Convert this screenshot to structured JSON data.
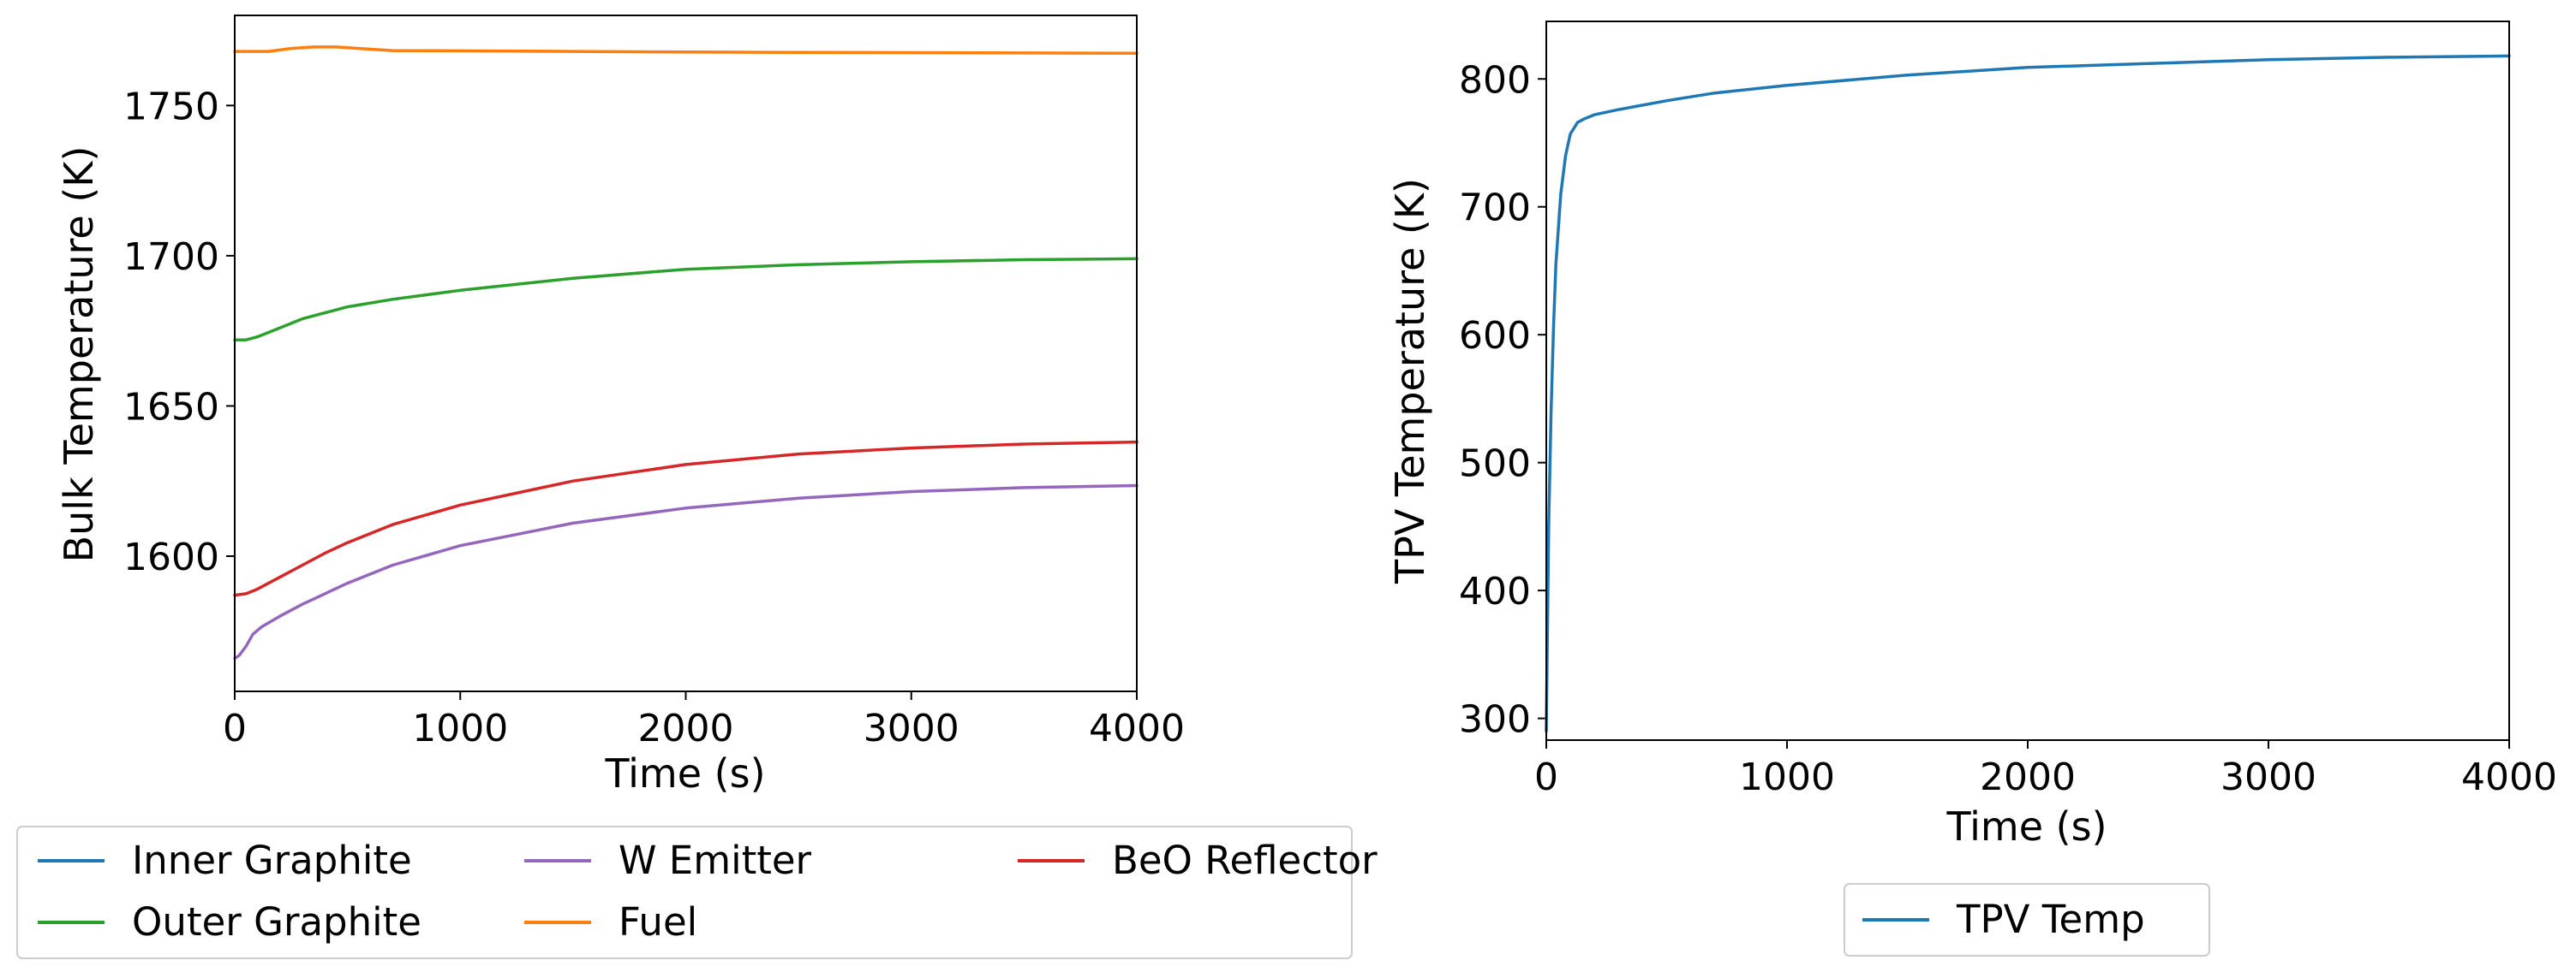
{
  "chart_data": [
    {
      "type": "line",
      "xlabel": "Time (s)",
      "ylabel": "Bulk Temperature (K)",
      "xlim": [
        0,
        4000
      ],
      "ylim": [
        1555,
        1780
      ],
      "xticks": [
        0,
        1000,
        2000,
        3000,
        4000
      ],
      "yticks": [
        1600,
        1650,
        1700,
        1750
      ],
      "legend": "below",
      "series": [
        {
          "name": "Inner Graphite",
          "color": "#1f77b4",
          "x": [],
          "y": []
        },
        {
          "name": "Fuel",
          "color": "#ff7f0e",
          "x": [
            0,
            150,
            250,
            350,
            450,
            550,
            700,
            1000,
            1500,
            2000,
            2500,
            3000,
            3500,
            4000
          ],
          "y": [
            1768,
            1768,
            1769,
            1769.5,
            1769.5,
            1769,
            1768.3,
            1768.2,
            1768,
            1767.8,
            1767.7,
            1767.6,
            1767.5,
            1767.4
          ]
        },
        {
          "name": "Outer Graphite",
          "color": "#2ca02c",
          "x": [
            0,
            50,
            100,
            200,
            300,
            400,
            500,
            700,
            1000,
            1500,
            2000,
            2500,
            3000,
            3500,
            4000
          ],
          "y": [
            1672,
            1672,
            1673,
            1676,
            1679,
            1681,
            1683,
            1685.5,
            1688.5,
            1692.5,
            1695.5,
            1697,
            1698,
            1698.7,
            1699
          ]
        },
        {
          "name": "BeO Reflector",
          "color": "#d62728",
          "x": [
            0,
            50,
            100,
            200,
            300,
            400,
            500,
            700,
            1000,
            1500,
            2000,
            2500,
            3000,
            3500,
            4000
          ],
          "y": [
            1587,
            1587.5,
            1589,
            1593,
            1597,
            1601,
            1604.5,
            1610.5,
            1617,
            1625,
            1630.5,
            1634,
            1636,
            1637.3,
            1638
          ]
        },
        {
          "name": "W Emitter",
          "color": "#9467bd",
          "x": [
            0,
            20,
            50,
            80,
            120,
            200,
            300,
            500,
            700,
            1000,
            1500,
            2000,
            2500,
            3000,
            3500,
            4000
          ],
          "y": [
            1566,
            1567,
            1570,
            1574,
            1576.5,
            1580,
            1584,
            1591,
            1597,
            1603.5,
            1611,
            1616,
            1619.3,
            1621.5,
            1622.8,
            1623.5
          ]
        }
      ],
      "legend_entries": [
        "Inner Graphite",
        "Outer Graphite",
        "W Emitter",
        "Fuel",
        "BeO Reflector"
      ]
    },
    {
      "type": "line",
      "xlabel": "Time (s)",
      "ylabel": "TPV Temperature (K)",
      "xlim": [
        0,
        4000
      ],
      "ylim": [
        283,
        845
      ],
      "xticks": [
        0,
        1000,
        2000,
        3000,
        4000
      ],
      "yticks": [
        300,
        400,
        500,
        600,
        700,
        800
      ],
      "legend": "below",
      "series": [
        {
          "name": "TPV Temp",
          "color": "#1f77b4",
          "x": [
            0,
            10,
            20,
            30,
            40,
            60,
            80,
            100,
            130,
            160,
            200,
            300,
            500,
            700,
            1000,
            1500,
            2000,
            2500,
            3000,
            3500,
            4000
          ],
          "y": [
            290,
            450,
            540,
            605,
            655,
            710,
            740,
            757,
            766,
            769,
            772,
            776,
            783,
            789,
            795,
            803,
            809,
            812,
            815,
            817,
            818
          ]
        }
      ],
      "legend_entries": [
        "TPV Temp"
      ]
    }
  ]
}
